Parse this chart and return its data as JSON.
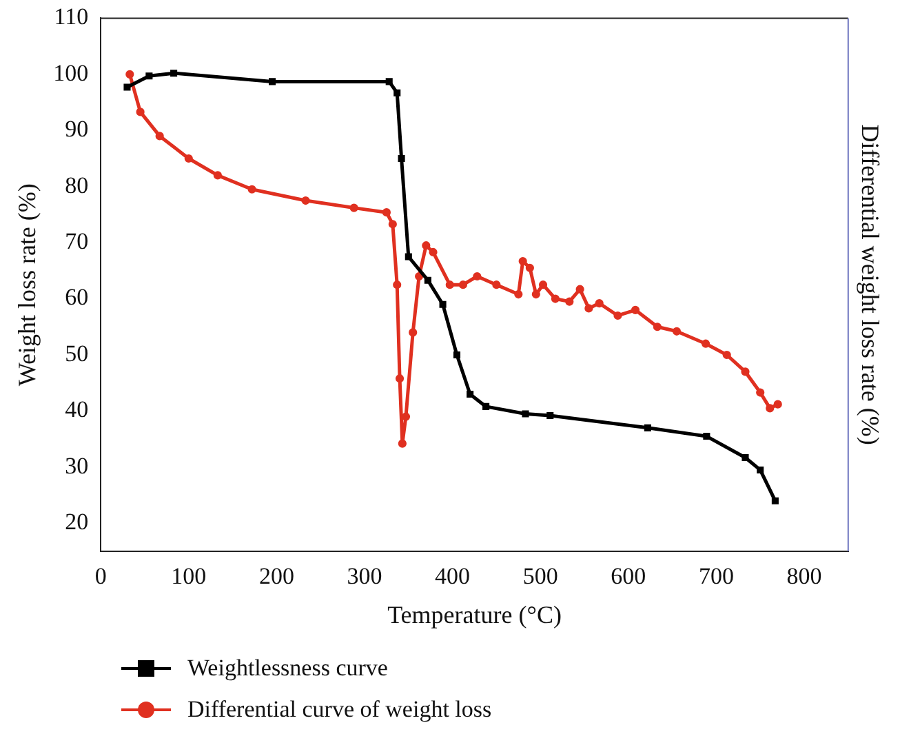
{
  "chart_data": {
    "type": "line",
    "xlabel": "Temperature (°C)",
    "ylabel": "Weight loss rate (%)",
    "y2label": "Differential weight loss rate (%)",
    "xlim": [
      0,
      850
    ],
    "xticks": [
      0,
      100,
      200,
      300,
      400,
      500,
      600,
      700,
      800
    ],
    "ylim": [
      15,
      110
    ],
    "yticks": [
      20,
      30,
      40,
      50,
      60,
      70,
      80,
      90,
      100,
      110
    ],
    "grid": false,
    "legend": "bottom",
    "line_style": "solid",
    "series": [
      {
        "name": "Weightlessness curve",
        "color": "#000000",
        "marker": "square",
        "x": [
          30,
          55,
          83,
          195,
          328,
          337,
          342,
          350,
          372,
          389,
          405,
          420,
          438,
          483,
          511,
          622,
          689,
          733,
          750,
          767
        ],
        "values": [
          97.7,
          99.7,
          100.2,
          98.7,
          98.7,
          96.7,
          85,
          67.5,
          63.3,
          59,
          50,
          43,
          40.8,
          39.5,
          39.2,
          37,
          35.5,
          31.7,
          29.5,
          24
        ]
      },
      {
        "name": "Differential curve of weight loss",
        "color": "#e03020",
        "marker": "circle",
        "x": [
          33,
          45,
          67,
          100,
          133,
          172,
          233,
          288,
          325,
          332,
          337,
          340,
          343,
          347,
          355,
          362,
          370,
          378,
          397,
          412,
          428,
          450,
          475,
          480,
          488,
          495,
          503,
          517,
          533,
          545,
          555,
          567,
          588,
          608,
          633,
          655,
          688,
          712,
          733,
          750,
          761,
          770
        ],
        "values": [
          100,
          93.3,
          89,
          85,
          82,
          79.5,
          77.5,
          76.2,
          75.4,
          73.3,
          62.5,
          45.8,
          34.2,
          39,
          54,
          64,
          69.5,
          68.3,
          62.5,
          62.5,
          64,
          62.5,
          60.8,
          66.7,
          65.5,
          60.8,
          62.5,
          60,
          59.5,
          61.7,
          58.3,
          59.2,
          57,
          58,
          55,
          54.2,
          52,
          50,
          47,
          43.3,
          40.5,
          41.2
        ]
      }
    ]
  }
}
